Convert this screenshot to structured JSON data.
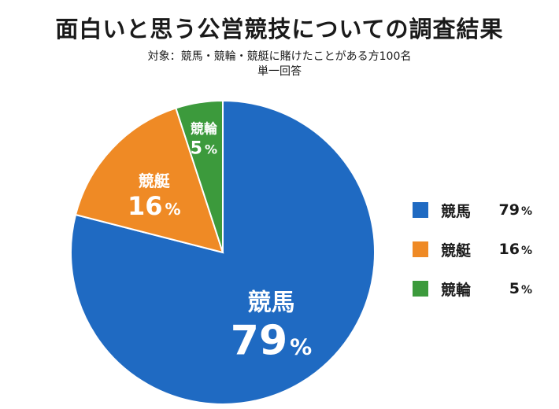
{
  "title": "面白いと思う公営競技についての調査結果",
  "subtitle_line1": "対象：競馬・競輪・競艇に賭けたことがある方100名",
  "subtitle_line2": "単一回答",
  "chart_data": {
    "type": "pie",
    "title": "面白いと思う公営競技についての調査結果",
    "subtitle": "対象：競馬・競輪・競艇に賭けたことがある方100名 単一回答",
    "unit": "%",
    "legend_position": "right",
    "slices": [
      {
        "label": "競馬",
        "value": 79,
        "color": "#1f6ac2"
      },
      {
        "label": "競艇",
        "value": 16,
        "color": "#ef8a25"
      },
      {
        "label": "競輪",
        "value": 5,
        "color": "#3c9a3c"
      }
    ]
  },
  "legend": [
    {
      "label": "競馬",
      "value": "79",
      "unit": "%"
    },
    {
      "label": "競艇",
      "value": "16",
      "unit": "%"
    },
    {
      "label": "競輪",
      "value": "5",
      "unit": "%"
    }
  ]
}
